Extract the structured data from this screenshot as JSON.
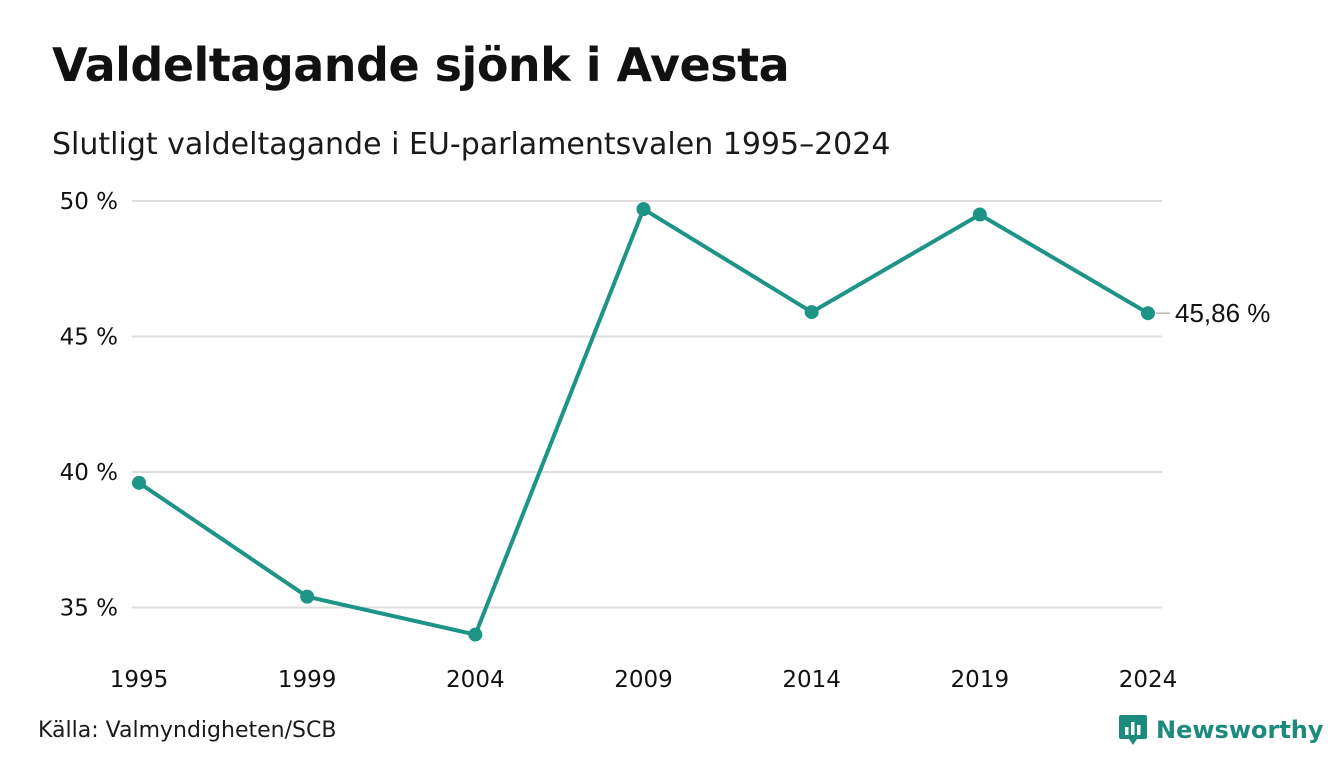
{
  "header": {
    "title": "Valdeltagande sjönk i Avesta",
    "subtitle": "Slutligt valdeltagande i EU-parlamentsvalen 1995–2024"
  },
  "footer": {
    "source": "Källa: Valmyndigheten/SCB",
    "brand": "Newsworthy"
  },
  "colors": {
    "line": "#1d9485",
    "grid": "#dddddd",
    "brand": "#1d8a7e"
  },
  "chart_data": {
    "type": "line",
    "title": "Valdeltagande sjönk i Avesta",
    "subtitle": "Slutligt valdeltagande i EU-parlamentsvalen 1995–2024",
    "categories": [
      "1995",
      "1999",
      "2004",
      "2009",
      "2014",
      "2019",
      "2024"
    ],
    "values": [
      39.6,
      35.4,
      34.0,
      49.7,
      45.9,
      49.5,
      45.86
    ],
    "ylim": [
      33.5,
      50
    ],
    "yticks": [
      50,
      45,
      40,
      35
    ],
    "ytick_labels": [
      "50 %",
      "45 %",
      "40 %",
      "35 %"
    ],
    "end_label": "45,86 %",
    "grid": true,
    "xlabel": "",
    "ylabel": ""
  }
}
